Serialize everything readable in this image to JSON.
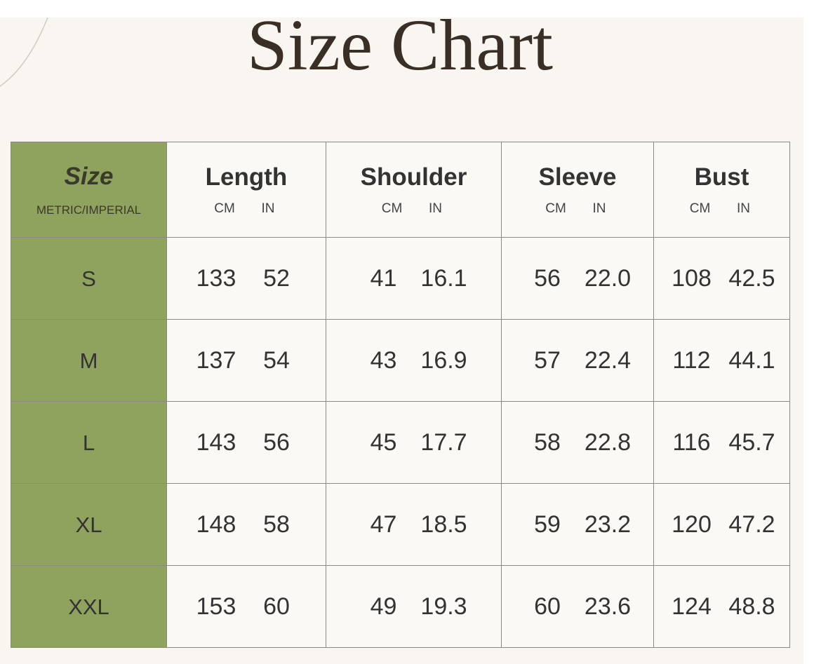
{
  "title": "Size Chart",
  "colors": {
    "accent_green": "#8fa35f",
    "background": "#f9f6f1",
    "title": "#3a2f26"
  },
  "table": {
    "size_header": "Size",
    "size_subheader": "METRIC/IMPERIAL",
    "unit_cm": "CM",
    "unit_in": "IN",
    "columns": [
      "Length",
      "Shoulder",
      "Sleeve",
      "Bust"
    ],
    "rows": [
      {
        "size": "S",
        "values": [
          [
            "133",
            "52"
          ],
          [
            "41",
            "16.1"
          ],
          [
            "56",
            "22.0"
          ],
          [
            "108",
            "42.5"
          ]
        ]
      },
      {
        "size": "M",
        "values": [
          [
            "137",
            "54"
          ],
          [
            "43",
            "16.9"
          ],
          [
            "57",
            "22.4"
          ],
          [
            "112",
            "44.1"
          ]
        ]
      },
      {
        "size": "L",
        "values": [
          [
            "143",
            "56"
          ],
          [
            "45",
            "17.7"
          ],
          [
            "58",
            "22.8"
          ],
          [
            "116",
            "45.7"
          ]
        ]
      },
      {
        "size": "XL",
        "values": [
          [
            "148",
            "58"
          ],
          [
            "47",
            "18.5"
          ],
          [
            "59",
            "23.2"
          ],
          [
            "120",
            "47.2"
          ]
        ]
      },
      {
        "size": "XXL",
        "values": [
          [
            "153",
            "60"
          ],
          [
            "49",
            "19.3"
          ],
          [
            "60",
            "23.6"
          ],
          [
            "124",
            "48.8"
          ]
        ]
      }
    ]
  }
}
